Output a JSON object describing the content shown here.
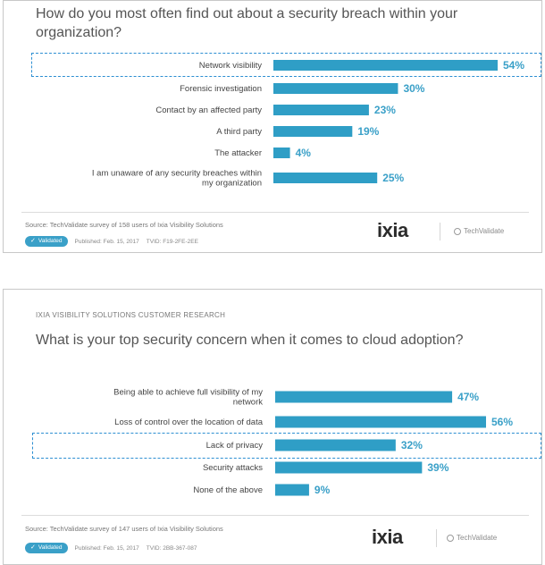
{
  "chart_data": [
    {
      "type": "bar",
      "orientation": "horizontal",
      "eyebrow": "",
      "title": "How do you most often find out about a security breach within your organization?",
      "categories": [
        "Network visibility",
        "Forensic investigation",
        "Contact by an affected party",
        "A third party",
        "The attacker",
        "I am unaware of any security breaches within my organization"
      ],
      "label_lines": [
        [
          "Network visibility"
        ],
        [
          "Forensic investigation"
        ],
        [
          "Contact by an affected party"
        ],
        [
          "A third party"
        ],
        [
          "The attacker"
        ],
        [
          "I am unaware of any security breaches within",
          "my organization"
        ]
      ],
      "values": [
        54,
        30,
        23,
        19,
        4,
        25
      ],
      "value_labels": [
        "54%",
        "30%",
        "23%",
        "19%",
        "4%",
        "25%"
      ],
      "unit": "%",
      "xlim": [
        0,
        54
      ],
      "highlighted_category": "Network visibility",
      "bar_color": "#2f9ec6",
      "source": "Source: TechValidate survey of 158 users of Ixia Visibility Solutions",
      "badge": "Validated",
      "published": "Published: Feb. 15, 2017",
      "tvid": "TVID: F19-2FE-2EE"
    },
    {
      "type": "bar",
      "orientation": "horizontal",
      "eyebrow": "IXIA VISIBILITY SOLUTIONS CUSTOMER RESEARCH",
      "title": "What is your top security concern when it comes to cloud adoption?",
      "categories": [
        "Being able to achieve full visibility of my network",
        "Loss of control over the location of data",
        "Lack of privacy",
        "Security attacks",
        "None of the above"
      ],
      "label_lines": [
        [
          "Being able to achieve full visibility of my",
          "network"
        ],
        [
          "Loss of control over the location of data"
        ],
        [
          "Lack of privacy"
        ],
        [
          "Security attacks"
        ],
        [
          "None of the above"
        ]
      ],
      "values": [
        47,
        56,
        32,
        39,
        9
      ],
      "value_labels": [
        "47%",
        "56%",
        "32%",
        "39%",
        "9%"
      ],
      "unit": "%",
      "xlim": [
        0,
        56
      ],
      "highlighted_category": "Lack of privacy",
      "bar_color": "#2f9ec6",
      "source": "Source: TechValidate survey of 147 users of Ixia Visibility Solutions",
      "badge": "Validated",
      "published": "Published: Feb. 15, 2017",
      "tvid": "TVID: 2BB-367-087"
    }
  ],
  "brand": {
    "logo_text": "ixia",
    "partner": "TechValidate"
  },
  "colors": {
    "accent": "#2f9ec6",
    "highlight_border": "#2d8fd2",
    "brand_text": "#2b2b2b",
    "brand_dot": "#e04a2a"
  }
}
